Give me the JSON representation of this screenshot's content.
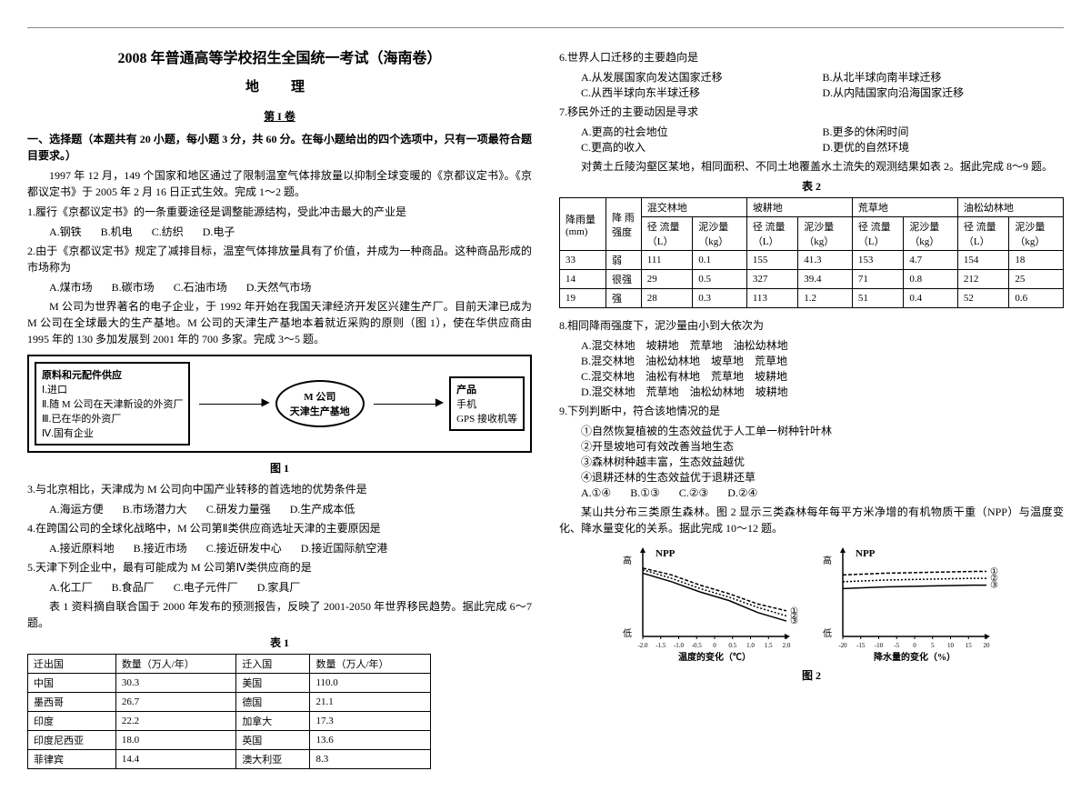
{
  "header": {
    "title": "2008 年普通高等学校招生全国统一考试（海南卷）",
    "subject": "地　理",
    "part": "第 I 卷"
  },
  "intro": {
    "section1": "一、选择题（本题共有 20 小题，每小题 3 分，共 60 分。在每小题给出的四个选项中，只有一项最符合题目要求。）",
    "para1": "1997 年 12 月，149 个国家和地区通过了限制温室气体排放量以抑制全球变暖的《京都议定书》。《京都议定书》于 2005 年 2 月 16 日正式生效。完成 1～2 题。"
  },
  "q1": {
    "stem": "1.履行《京都议定书》的一条重要途径是调整能源结构，受此冲击最大的产业是",
    "opts": [
      "A.钢铁",
      "B.机电",
      "C.纺织",
      "D.电子"
    ]
  },
  "q2": {
    "stem": "2.由于《京都议定书》规定了减排目标，温室气体排放量具有了价值，并成为一种商品。这种商品形成的市场称为",
    "opts": [
      "A.煤市场",
      "B.碳市场",
      "C.石油市场",
      "D.天然气市场"
    ]
  },
  "mpara": "M 公司为世界著名的电子企业，于 1992 年开始在我国天津经济开发区兴建生产厂。目前天津已成为 M 公司在全球最大的生产基地。M 公司的天津生产基地本着就近采购的原则（图 1），使在华供应商由 1995 年的 130 多加发展到 2001 年的 700 多家。完成 3～5 题。",
  "diagram": {
    "left_title": "原料和元配件供应",
    "left_items": [
      "Ⅰ.进口",
      "Ⅱ.随 M 公司在天津新设的外资厂",
      "Ⅲ.已在华的外资厂",
      "Ⅳ.国有企业"
    ],
    "center": "M 公司\n天津生产基地",
    "right_title": "产品",
    "right_items": [
      "手机",
      "GPS 接收机等"
    ],
    "caption": "图 1"
  },
  "q3": {
    "stem": "3.与北京相比，天津成为 M 公司向中国产业转移的首选地的优势条件是",
    "opts": [
      "A.海运方便",
      "B.市场潜力大",
      "C.研发力量强",
      "D.生产成本低"
    ]
  },
  "q4": {
    "stem": "4.在跨国公司的全球化战略中，M 公司第Ⅱ类供应商选址天津的主要原因是",
    "opts": [
      "A.接近原料地",
      "B.接近市场",
      "C.接近研发中心",
      "D.接近国际航空港"
    ]
  },
  "q5": {
    "stem": "5.天津下列企业中，最有可能成为 M 公司第Ⅳ类供应商的是",
    "opts": [
      "A.化工厂",
      "B.食品厂",
      "C.电子元件厂",
      "D.家具厂"
    ]
  },
  "t1intro": "表 1 资料摘自联合国于 2000 年发布的预测报告，反映了 2001-2050 年世界移民趋势。据此完成 6～7 题。",
  "table1": {
    "caption": "表 1",
    "headers": [
      "迁出国",
      "数量（万人/年）",
      "迁入国",
      "数量（万人/年）"
    ],
    "rows": [
      [
        "中国",
        "30.3",
        "美国",
        "110.0"
      ],
      [
        "墨西哥",
        "26.7",
        "德国",
        "21.1"
      ],
      [
        "印度",
        "22.2",
        "加拿大",
        "17.3"
      ],
      [
        "印度尼西亚",
        "18.0",
        "英国",
        "13.6"
      ],
      [
        "菲律宾",
        "14.4",
        "澳大利亚",
        "8.3"
      ]
    ]
  },
  "q6": {
    "stem": "6.世界人口迁移的主要趋向是",
    "opts": [
      "A.从发展国家向发达国家迁移",
      "B.从北半球向南半球迁移",
      "C.从西半球向东半球迁移",
      "D.从内陆国家向沿海国家迁移"
    ]
  },
  "q7": {
    "stem": "7.移民外迁的主要动因是寻求",
    "opts": [
      "A.更高的社会地位",
      "B.更多的休闲时间",
      "C.更高的收入",
      "D.更优的自然环境"
    ]
  },
  "t2intro": "对黄土丘陵沟壑区某地，相同面积、不同土地覆盖水土流失的观测结果如表 2。据此完成 8～9 题。",
  "table2": {
    "caption": "表 2",
    "top_headers": [
      "降雨量(mm)",
      "降 雨强度",
      "混交林地",
      "坡耕地",
      "荒草地",
      "油松幼林地"
    ],
    "sub_headers": [
      "径 流量（L）",
      "泥沙量（kg）",
      "径 流量（L）",
      "泥沙量（kg）",
      "径 流量（L）",
      "泥沙量（kg）",
      "径 流量（L）",
      "泥沙量（kg）"
    ],
    "rows": [
      [
        "33",
        "弱",
        "111",
        "0.1",
        "155",
        "41.3",
        "153",
        "4.7",
        "154",
        "18"
      ],
      [
        "14",
        "很强",
        "29",
        "0.5",
        "327",
        "39.4",
        "71",
        "0.8",
        "212",
        "25"
      ],
      [
        "19",
        "强",
        "28",
        "0.3",
        "113",
        "1.2",
        "51",
        "0.4",
        "52",
        "0.6"
      ]
    ]
  },
  "q8": {
    "stem": "8.相同降雨强度下，泥沙量由小到大依次为",
    "opts": [
      "A.混交林地　坡耕地　荒草地　油松幼林地",
      "B.混交林地　油松幼林地　坡草地　荒草地",
      "C.混交林地　油松有林地　荒草地　坡耕地",
      "D.混交林地　荒草地　油松幼林地　坡耕地"
    ]
  },
  "q9": {
    "stem": "9.下列判断中，符合该地情况的是",
    "items": [
      "①自然恢复植被的生态效益优于人工单一树种针叶林",
      "②开垦坡地可有效改善当地生态",
      "③森林树种越丰富，生态效益越优",
      "④退耕还林的生态效益优于退耕还草"
    ],
    "opts": [
      "A.①④",
      "B.①③",
      "C.②③",
      "D.②④"
    ]
  },
  "chartintro": "某山共分布三类原生森林。图 2 显示三类森林每年每平方米净增的有机物质干重（NPP）与温度变化、降水量变化的关系。据此完成 10～12 题。",
  "chart": {
    "ylabel": "NPP",
    "yhigh": "高",
    "ylow": "低",
    "left": {
      "xlabel": "温度的变化（℃）",
      "xticks": [
        "-2.0",
        "-1.5",
        "-1.0",
        "-0.5",
        "0",
        "0.5",
        "1.0",
        "1.5",
        "2.0"
      ],
      "series_labels": [
        "①",
        "②",
        "③"
      ],
      "series": [
        {
          "color": "#000",
          "dash": "4,2",
          "pts": [
            [
              0,
              20
            ],
            [
              40,
              28
            ],
            [
              80,
              40
            ],
            [
              120,
              50
            ],
            [
              160,
              62
            ],
            [
              200,
              70
            ]
          ]
        },
        {
          "color": "#000",
          "dash": "2,2",
          "pts": [
            [
              0,
              22
            ],
            [
              40,
              32
            ],
            [
              80,
              44
            ],
            [
              120,
              54
            ],
            [
              160,
              66
            ],
            [
              200,
              76
            ]
          ]
        },
        {
          "color": "#000",
          "dash": "",
          "pts": [
            [
              0,
              26
            ],
            [
              40,
              36
            ],
            [
              80,
              48
            ],
            [
              120,
              58
            ],
            [
              160,
              72
            ],
            [
              200,
              82
            ]
          ]
        }
      ]
    },
    "right": {
      "xlabel": "降水量的变化（%）",
      "xticks": [
        "-20",
        "-15",
        "-10",
        "-5",
        "0",
        "5",
        "10",
        "15",
        "20"
      ],
      "series_labels": [
        "①",
        "②",
        "③"
      ],
      "series": [
        {
          "color": "#000",
          "dash": "4,2",
          "pts": [
            [
              0,
              28
            ],
            [
              60,
              26
            ],
            [
              120,
              25
            ],
            [
              180,
              24
            ],
            [
              200,
              24
            ]
          ]
        },
        {
          "color": "#000",
          "dash": "2,2",
          "pts": [
            [
              0,
              36
            ],
            [
              60,
              34
            ],
            [
              120,
              33
            ],
            [
              180,
              32
            ],
            [
              200,
              32
            ]
          ]
        },
        {
          "color": "#000",
          "dash": "",
          "pts": [
            [
              0,
              44
            ],
            [
              60,
              42
            ],
            [
              120,
              41
            ],
            [
              180,
              40
            ],
            [
              200,
              40
            ]
          ]
        }
      ]
    },
    "caption": "图 2"
  }
}
